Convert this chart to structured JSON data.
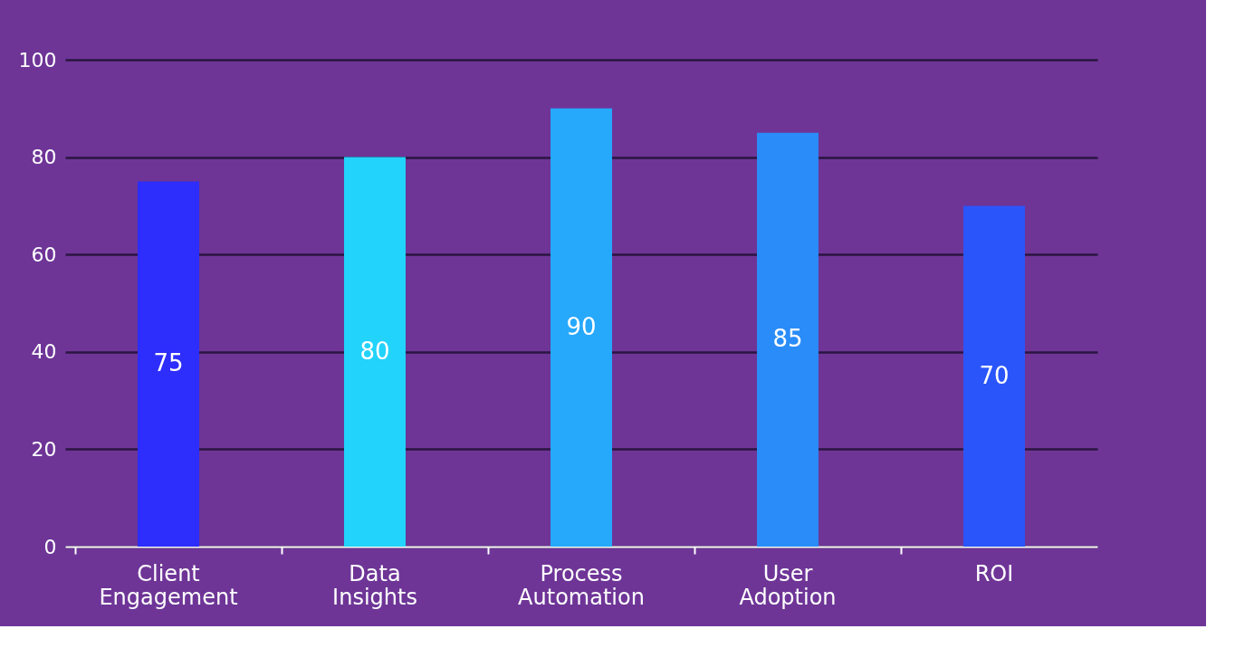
{
  "chart_data": {
    "type": "bar",
    "categories": [
      "Client Engagement",
      "Data Insights",
      "Process Automation",
      "User Adoption",
      "ROI"
    ],
    "values": [
      75,
      80,
      90,
      85,
      70
    ],
    "colors": [
      "#2d2dfc",
      "#22d3fb",
      "#26a8fb",
      "#2a8cf8",
      "#2a55fb"
    ],
    "ylim": [
      0,
      100
    ],
    "yticks": [
      0,
      20,
      40,
      60,
      80,
      100
    ],
    "grid": "y",
    "data_labels": true
  }
}
